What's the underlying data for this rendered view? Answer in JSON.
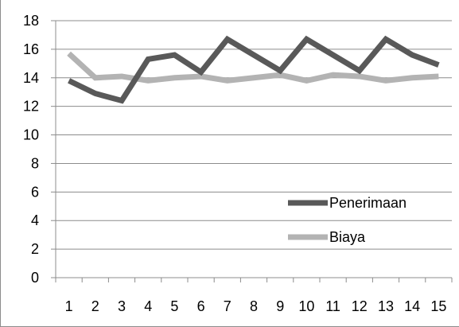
{
  "chart_data": {
    "type": "line",
    "x": [
      1,
      2,
      3,
      4,
      5,
      6,
      7,
      8,
      9,
      10,
      11,
      12,
      13,
      14,
      15
    ],
    "series": [
      {
        "name": "Penerimaan",
        "color": "#595959",
        "values": [
          13.8,
          12.9,
          12.4,
          15.3,
          15.6,
          14.4,
          16.7,
          15.6,
          14.5,
          16.7,
          15.6,
          14.5,
          16.7,
          15.6,
          14.9
        ]
      },
      {
        "name": "Biaya",
        "color": "#b3b3b3",
        "values": [
          15.7,
          14.0,
          14.1,
          13.8,
          14.0,
          14.1,
          13.8,
          14.0,
          14.2,
          13.8,
          14.2,
          14.1,
          13.8,
          14.0,
          14.1
        ]
      }
    ],
    "y_ticks": [
      "0",
      "2",
      "4",
      "6",
      "8",
      "10",
      "12",
      "14",
      "16",
      "18"
    ],
    "x_ticks": [
      "1",
      "2",
      "3",
      "4",
      "5",
      "6",
      "7",
      "8",
      "9",
      "10",
      "11",
      "12",
      "13",
      "14",
      "15"
    ],
    "ylim": [
      0,
      18
    ],
    "grid": true,
    "legend": "center-right",
    "title": "",
    "xlabel": "",
    "ylabel": ""
  }
}
